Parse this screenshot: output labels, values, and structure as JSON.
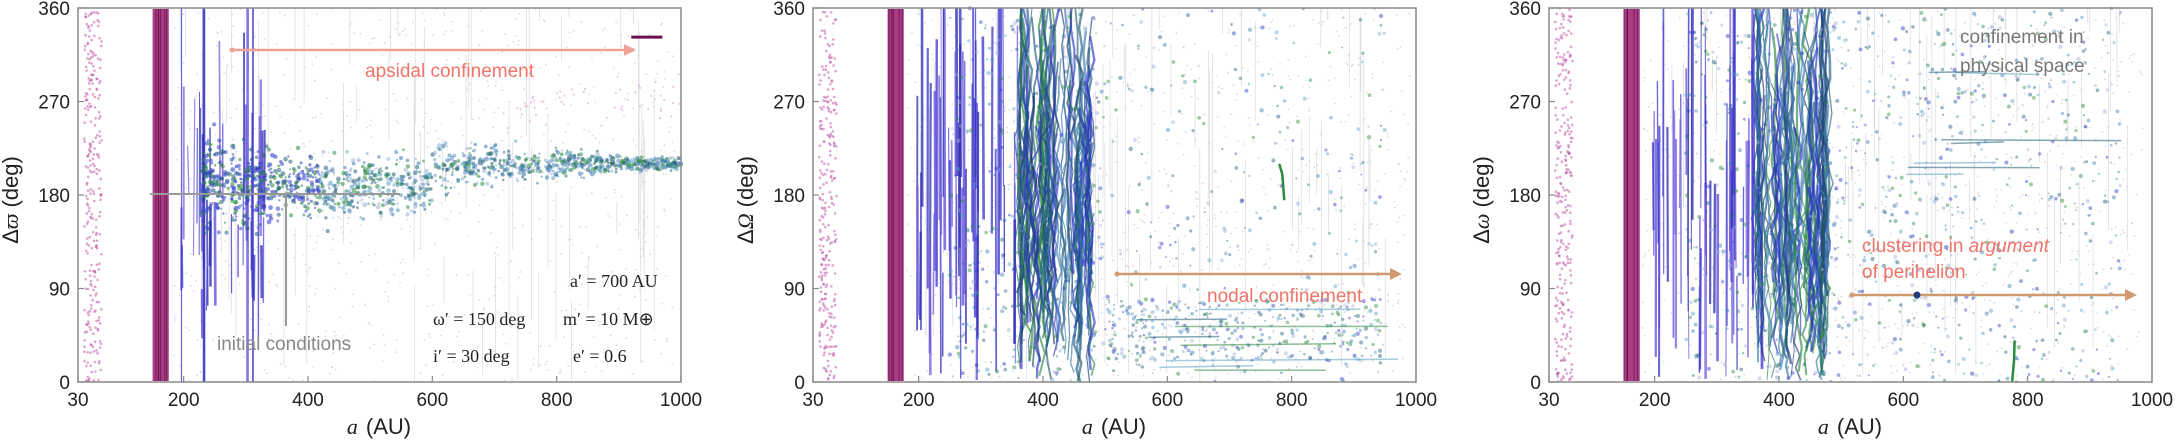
{
  "panels": [
    {
      "id": "varpi",
      "ylabel_prefix": "Δ",
      "ylabel_symbol": "ϖ",
      "ylabel_unit": "(deg)",
      "xlabel_symbol": "a",
      "xlabel_unit": "(AU)",
      "annotations": {
        "arrow_label": "apsidal confinement",
        "ic_label": "initial conditions"
      },
      "params": {
        "a_prime": "a′ = 700 AU",
        "omega_prime": "ω′ = 150 deg",
        "m_prime": "m′ = 10 M⊕",
        "i_prime": "i′ = 30 deg",
        "e_prime": "e′ = 0.6"
      }
    },
    {
      "id": "Omega",
      "ylabel_prefix": "Δ",
      "ylabel_symbol": "Ω",
      "ylabel_unit": "(deg)",
      "xlabel_symbol": "a",
      "xlabel_unit": "(AU)",
      "annotations": {
        "arrow_label": "nodal confinement"
      }
    },
    {
      "id": "omega",
      "ylabel_prefix": "Δ",
      "ylabel_symbol": "ω",
      "ylabel_unit": "(deg)",
      "xlabel_symbol": "a",
      "xlabel_unit": "(AU)",
      "annotations": {
        "note_line1": "confinement in",
        "note_line2": "physical space",
        "cluster_line1_a": "clustering in ",
        "cluster_line1_b": "argument",
        "cluster_line2": "of perihelion"
      }
    }
  ],
  "colors": {
    "arrow_coral": "#f0a196",
    "arrow_tan": "#d09a70",
    "label_coral": "#f07468",
    "note_gray": "#777777",
    "ic_gray": "#888888",
    "magenta": "#9a1a6e",
    "blue": "#2a36c8",
    "green": "#2b8a3e",
    "teal": "#1f5f7a"
  },
  "chart_data": [
    {
      "type": "scatter",
      "xlabel": "a (AU)",
      "ylabel": "Δϖ (deg)",
      "x_ticks": [
        30,
        200,
        400,
        600,
        800,
        1000
      ],
      "y_ticks": [
        0,
        90,
        180,
        270,
        360
      ],
      "xlim": [
        30,
        1000
      ],
      "ylim": [
        0,
        360
      ],
      "grid": false,
      "annotations": [
        "apsidal confinement",
        "initial conditions"
      ],
      "parameters": [
        "a′ = 700 AU",
        "ω′ = 150 deg",
        "m′ = 10 M⊕",
        "i′ = 30 deg",
        "e′ = 0.6"
      ]
    },
    {
      "type": "scatter",
      "xlabel": "a (AU)",
      "ylabel": "ΔΩ (deg)",
      "x_ticks": [
        30,
        200,
        400,
        600,
        800,
        1000
      ],
      "y_ticks": [
        0,
        90,
        180,
        270,
        360
      ],
      "xlim": [
        30,
        1000
      ],
      "ylim": [
        0,
        360
      ],
      "grid": false,
      "annotations": [
        "nodal confinement"
      ]
    },
    {
      "type": "scatter",
      "xlabel": "a (AU)",
      "ylabel": "Δω (deg)",
      "x_ticks": [
        30,
        200,
        400,
        600,
        800,
        1000
      ],
      "y_ticks": [
        0,
        90,
        180,
        270,
        360
      ],
      "xlim": [
        30,
        1000
      ],
      "ylim": [
        0,
        360
      ],
      "grid": false,
      "annotations": [
        "confinement in physical space",
        "clustering in argument of perihelion"
      ]
    }
  ]
}
